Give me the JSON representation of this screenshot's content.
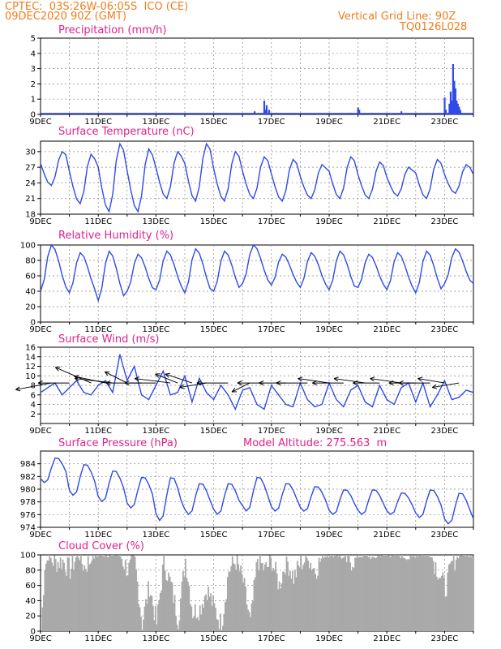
{
  "header": {
    "line1": "CPTEC:  03S:26W-06:05S  ICO (CE)",
    "line2": "09DEC2020 90Z (GMT)",
    "grid_note": "Vertical Grid Line: 90Z",
    "model": "TQ0126L028"
  },
  "colors": {
    "header": "#f07d1e",
    "title": "#e0218a",
    "line": "#2f4ae8",
    "cloud": "#a9a9a9",
    "grid": "#888888"
  },
  "chart_data": [
    {
      "type": "bar",
      "title": "Precipitation (mm/h)",
      "ylim": [
        0,
        5
      ],
      "yticks": [
        0,
        1,
        2,
        3,
        4,
        5
      ],
      "xlim": [
        0,
        360
      ],
      "xtick_labels": [
        "9DEC",
        "11DEC",
        "13DEC",
        "15DEC",
        "17DEC",
        "19DEC",
        "21DEC",
        "23DEC"
      ],
      "x": [
        177,
        178,
        180,
        186,
        187,
        188,
        190,
        196,
        208,
        230,
        231,
        232,
        258,
        264,
        265,
        276,
        292,
        300,
        302,
        332,
        336,
        337,
        339,
        340,
        341,
        342,
        343,
        344,
        345,
        346,
        347,
        348,
        349,
        350
      ],
      "values": [
        0.1,
        0.2,
        0.05,
        0.9,
        0.3,
        0.6,
        0.3,
        0.1,
        0.1,
        0.05,
        0.1,
        0.05,
        0.1,
        0.45,
        0.3,
        0.1,
        0.05,
        0.2,
        0.05,
        0.1,
        1.1,
        0.3,
        0.1,
        0.7,
        1.5,
        0.9,
        3.3,
        2.2,
        1.7,
        0.9,
        0.7,
        0.5,
        0.3,
        0.1
      ]
    },
    {
      "type": "line",
      "title": "Surface Temperature (nC)",
      "ylim": [
        18,
        32
      ],
      "yticks": [
        18,
        21,
        24,
        27,
        30
      ],
      "xlim": [
        0,
        360
      ],
      "xtick_labels": [
        "9DEC",
        "11DEC",
        "13DEC",
        "15DEC",
        "17DEC",
        "19DEC",
        "21DEC",
        "23DEC"
      ],
      "daily_max": [
        30.0,
        29.5,
        31.5,
        30.5,
        30.0,
        31.5,
        30.0,
        29.0,
        28.5,
        27.5,
        29.0,
        28.0,
        27.0,
        28.5,
        27.5
      ],
      "daily_min": [
        23.5,
        20.0,
        18.5,
        18.5,
        21.0,
        20.5,
        20.5,
        21.0,
        20.5,
        21.0,
        21.0,
        21.0,
        21.5,
        21.0,
        22.0
      ]
    },
    {
      "type": "line",
      "title": "Relative Humidity (%)",
      "ylim": [
        0,
        100
      ],
      "yticks": [
        0,
        20,
        40,
        60,
        80,
        100
      ],
      "xlim": [
        0,
        360
      ],
      "xtick_labels": [
        "9DEC",
        "11DEC",
        "13DEC",
        "15DEC",
        "17DEC",
        "19DEC",
        "21DEC",
        "23DEC"
      ],
      "daily_max": [
        100,
        90,
        92,
        88,
        92,
        95,
        92,
        100,
        88,
        90,
        92,
        88,
        90,
        92,
        95
      ],
      "daily_min": [
        40,
        38,
        28,
        40,
        42,
        38,
        40,
        50,
        48,
        45,
        42,
        45,
        42,
        38,
        50
      ]
    },
    {
      "type": "line",
      "title": "Surface Wind (m/s)",
      "ylim": [
        0,
        16
      ],
      "yticks": [
        2,
        4,
        6,
        8,
        10,
        12,
        14,
        16
      ],
      "xlim": [
        0,
        360
      ],
      "xtick_labels": [
        "9DEC",
        "11DEC",
        "13DEC",
        "15DEC",
        "17DEC",
        "19DEC",
        "21DEC",
        "23DEC"
      ],
      "x": [
        0,
        6,
        12,
        18,
        24,
        30,
        36,
        42,
        48,
        54,
        60,
        66,
        72,
        78,
        84,
        90,
        96,
        102,
        108,
        114,
        120,
        126,
        132,
        138,
        144,
        150,
        156,
        162,
        168,
        174,
        180,
        186,
        192,
        198,
        204,
        210,
        216,
        222,
        228,
        234,
        240,
        246,
        252,
        258,
        264,
        270,
        276,
        282,
        288,
        294,
        300,
        306,
        312,
        318,
        324,
        330,
        336,
        342,
        348,
        354,
        360
      ],
      "values": [
        6.5,
        7.5,
        8.5,
        6,
        7.5,
        9,
        6.5,
        6,
        8,
        9,
        6.5,
        14.5,
        9,
        12,
        6,
        5,
        8,
        11,
        6,
        6.5,
        10,
        4.5,
        9.5,
        6.5,
        5,
        8,
        6,
        3,
        7,
        7.5,
        4,
        3,
        8,
        6,
        4,
        3.5,
        8.5,
        5,
        3.5,
        4,
        8.5,
        5,
        3.5,
        7,
        8,
        4.5,
        3.5,
        8,
        5,
        4,
        7.5,
        8.5,
        4.5,
        8.5,
        3.5,
        6,
        9,
        5,
        5.5,
        7,
        6.5
      ],
      "vectors": [
        {
          "x": 9,
          "u": -8,
          "v": -1.5
        },
        {
          "x": 24,
          "u": -7,
          "v": 0
        },
        {
          "x": 42,
          "u": -8,
          "v": 3.5
        },
        {
          "x": 54,
          "u": -7,
          "v": 1.5
        },
        {
          "x": 60,
          "u": -8.5,
          "v": 1.0
        },
        {
          "x": 72,
          "u": -5,
          "v": 2.5
        },
        {
          "x": 84,
          "u": -8,
          "v": 0
        },
        {
          "x": 96,
          "u": -7,
          "v": 0
        },
        {
          "x": 108,
          "u": -8,
          "v": 1
        },
        {
          "x": 114,
          "u": -5,
          "v": 2
        },
        {
          "x": 126,
          "u": -6,
          "v": 2
        },
        {
          "x": 138,
          "u": -6,
          "v": -1
        },
        {
          "x": 156,
          "u": -7,
          "v": 0
        },
        {
          "x": 174,
          "u": -4,
          "v": -2
        },
        {
          "x": 186,
          "u": -6,
          "v": 0
        },
        {
          "x": 204,
          "u": -6,
          "v": 0
        },
        {
          "x": 222,
          "u": -7,
          "v": 0
        },
        {
          "x": 240,
          "u": -7,
          "v": 1
        },
        {
          "x": 252,
          "u": -7,
          "v": 0
        },
        {
          "x": 270,
          "u": -7,
          "v": 1
        },
        {
          "x": 282,
          "u": -6,
          "v": 0
        },
        {
          "x": 300,
          "u": -7,
          "v": 1
        },
        {
          "x": 312,
          "u": -6,
          "v": 0
        },
        {
          "x": 324,
          "u": -7,
          "v": 0
        },
        {
          "x": 336,
          "u": -6,
          "v": 1
        },
        {
          "x": 348,
          "u": -6,
          "v": -1
        }
      ]
    },
    {
      "type": "line",
      "title": "Surface Pressure (hPa)",
      "annotation": "Model Altitude: 275.563  m",
      "ylim": [
        974,
        986
      ],
      "yticks": [
        974,
        976,
        978,
        980,
        982,
        984
      ],
      "xlim": [
        0,
        360
      ],
      "xtick_labels": [
        "9DEC",
        "11DEC",
        "13DEC",
        "15DEC",
        "17DEC",
        "19DEC",
        "21DEC",
        "23DEC"
      ],
      "daily_max": [
        985.0,
        984.0,
        983.0,
        982.0,
        982.0,
        981.0,
        981.0,
        982.0,
        981.0,
        980.5,
        980.0,
        980.0,
        979.5,
        980.0,
        979.5
      ],
      "daily_min": [
        981.0,
        979.0,
        978.0,
        977.0,
        975.0,
        976.0,
        976.0,
        976.5,
        976.5,
        976.5,
        976.0,
        976.0,
        976.0,
        975.5,
        974.5
      ]
    },
    {
      "type": "area",
      "title": "Cloud Cover (%)",
      "ylim": [
        0,
        100
      ],
      "yticks": [
        0,
        20,
        40,
        60,
        80,
        100
      ],
      "xlim": [
        0,
        360
      ],
      "xtick_labels": [
        "9DEC",
        "11DEC",
        "13DEC",
        "15DEC",
        "17DEC",
        "19DEC",
        "21DEC",
        "23DEC"
      ],
      "x": [
        0,
        3,
        6,
        12,
        18,
        24,
        30,
        36,
        42,
        48,
        54,
        60,
        66,
        72,
        78,
        84,
        90,
        96,
        102,
        108,
        114,
        120,
        126,
        132,
        138,
        144,
        150,
        156,
        162,
        168,
        174,
        180,
        186,
        192,
        198,
        204,
        210,
        216,
        222,
        228,
        234,
        240,
        246,
        252,
        258,
        264,
        270,
        276,
        282,
        288,
        294,
        300,
        306,
        312,
        318,
        324,
        330,
        336,
        342,
        348,
        354,
        360
      ],
      "values": [
        0,
        88,
        95,
        90,
        92,
        80,
        100,
        85,
        95,
        100,
        100,
        100,
        98,
        80,
        90,
        10,
        60,
        10,
        92,
        60,
        15,
        95,
        25,
        30,
        55,
        30,
        8,
        80,
        92,
        65,
        10,
        95,
        80,
        92,
        60,
        95,
        70,
        90,
        95,
        80,
        98,
        100,
        100,
        95,
        92,
        98,
        100,
        95,
        100,
        100,
        100,
        98,
        95,
        100,
        100,
        100,
        80,
        55,
        90,
        100,
        100,
        100
      ]
    }
  ]
}
